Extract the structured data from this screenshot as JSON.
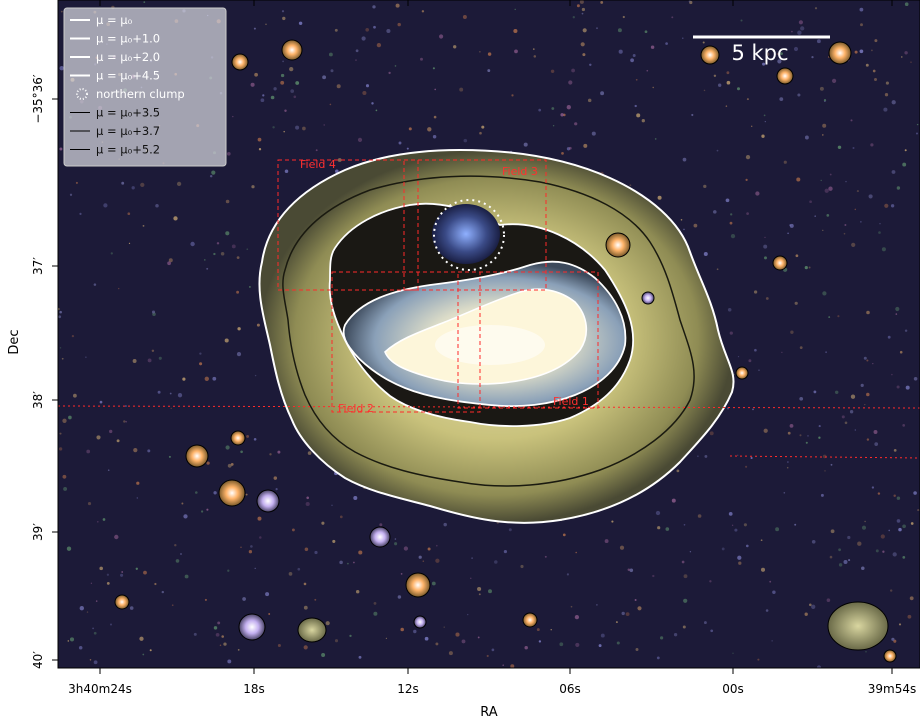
{
  "axes": {
    "xlabel": "RA",
    "ylabel": "Dec",
    "xticks": [
      "3h40m24s",
      "18s",
      "12s",
      "06s",
      "00s",
      "39m54s"
    ],
    "yticks": [
      "−35°36′",
      "37′",
      "38′",
      "39′",
      "40′"
    ]
  },
  "scalebar": {
    "label": "5 kpc"
  },
  "legend": {
    "entries": [
      {
        "label": "μ = μ₀",
        "style": "white-line"
      },
      {
        "label": "μ = μ₀+1.0",
        "style": "white-line"
      },
      {
        "label": "μ = μ₀+2.0",
        "style": "white-line"
      },
      {
        "label": "μ = μ₀+4.5",
        "style": "white-line"
      },
      {
        "label": "northern clump",
        "style": "white-dotted-circle"
      },
      {
        "label": "μ = μ₀+3.5",
        "style": "black-line"
      },
      {
        "label": "μ = μ₀+3.7",
        "style": "black-line"
      },
      {
        "label": "μ = μ₀+5.2",
        "style": "black-line"
      }
    ]
  },
  "fields": [
    {
      "label": "Field 1"
    },
    {
      "label": "Field 2"
    },
    {
      "label": "Field 3"
    },
    {
      "label": "Field 4"
    }
  ],
  "colors": {
    "sky": "#1c1a38",
    "halo": "#d8d08a",
    "core": "#f2eed8",
    "field_boxes": "#ff2a2a",
    "contours_white": "#ffffff",
    "contours_black": "#000000"
  }
}
